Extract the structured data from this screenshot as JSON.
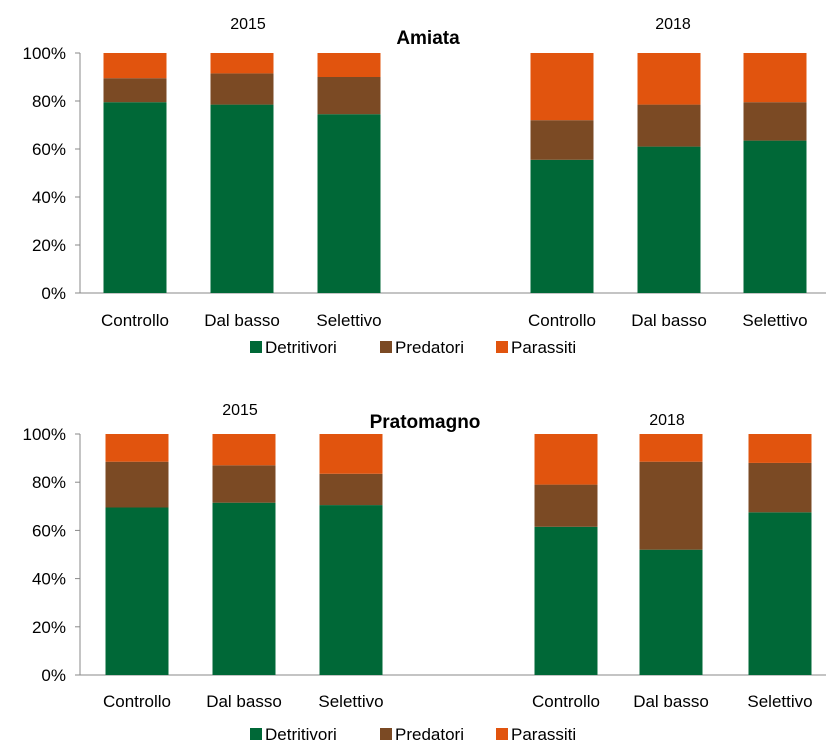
{
  "legend": [
    {
      "label": "Detritivori",
      "color": "#006837"
    },
    {
      "label": "Predatori",
      "color": "#7B4A24"
    },
    {
      "label": "Parassiti",
      "color": "#E1540E"
    }
  ],
  "chart_data": [
    {
      "type": "bar",
      "stacked": true,
      "title": "Amiata",
      "year_labels": [
        "2015",
        "2018"
      ],
      "categories": [
        "Controllo",
        "Dal basso",
        "Selettivo",
        "Controllo",
        "Dal basso",
        "Selettivo"
      ],
      "groups": [
        {
          "year": "2015",
          "categories": [
            "Controllo",
            "Dal basso",
            "Selettivo"
          ]
        },
        {
          "year": "2018",
          "categories": [
            "Controllo",
            "Dal basso",
            "Selettivo"
          ]
        }
      ],
      "series": [
        {
          "name": "Detritivori",
          "values": [
            79.5,
            78.5,
            74.5,
            55.5,
            61,
            63.5
          ]
        },
        {
          "name": "Predatori",
          "values": [
            10,
            13,
            15.5,
            16.5,
            17.5,
            16
          ]
        },
        {
          "name": "Parassiti",
          "values": [
            10.5,
            8.5,
            10,
            28,
            21.5,
            20.5
          ]
        }
      ],
      "yticks": [
        "0%",
        "20%",
        "40%",
        "60%",
        "80%",
        "100%"
      ],
      "ylim": [
        0,
        100
      ],
      "grid": false,
      "legend_position": "bottom"
    },
    {
      "type": "bar",
      "stacked": true,
      "title": "Pratomagno",
      "year_labels": [
        "2015",
        "2018"
      ],
      "categories": [
        "Controllo",
        "Dal basso",
        "Selettivo",
        "Controllo",
        "Dal basso",
        "Selettivo"
      ],
      "groups": [
        {
          "year": "2015",
          "categories": [
            "Controllo",
            "Dal basso",
            "Selettivo"
          ]
        },
        {
          "year": "2018",
          "categories": [
            "Controllo",
            "Dal basso",
            "Selettivo"
          ]
        }
      ],
      "series": [
        {
          "name": "Detritivori",
          "values": [
            69.5,
            71.5,
            70.5,
            61.5,
            52,
            67.5
          ]
        },
        {
          "name": "Predatori",
          "values": [
            19,
            15.5,
            13,
            17.5,
            36.5,
            20.5
          ]
        },
        {
          "name": "Parassiti",
          "values": [
            11.5,
            13,
            16.5,
            21,
            11.5,
            12
          ]
        }
      ],
      "yticks": [
        "0%",
        "20%",
        "40%",
        "60%",
        "80%",
        "100%"
      ],
      "ylim": [
        0,
        100
      ],
      "grid": false,
      "legend_position": "bottom"
    }
  ]
}
